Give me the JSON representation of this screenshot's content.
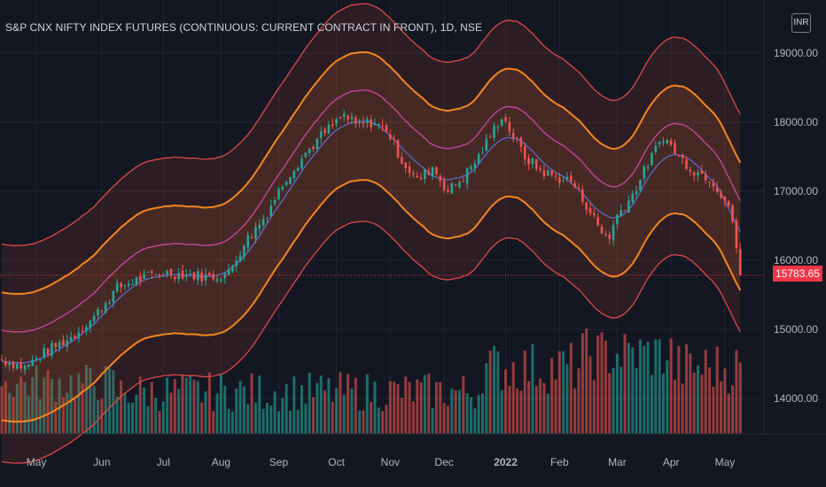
{
  "header": {
    "title": "S&P CNX NIFTY INDEX FUTURES (CONTINUOUS: CURRENT CONTRACT IN FRONT), 1D, NSE",
    "currency": "INR"
  },
  "price_tag": "15783.65",
  "colors": {
    "background": "#131722",
    "grid": "#222631",
    "axis_text": "#b2b5be",
    "up": "#26a69a",
    "down": "#ef5350",
    "outer_band": "#e04848",
    "inner_band": "#f5861f",
    "mid_line": "#c84aa0",
    "basis": "#5b6ad0"
  },
  "chart_data": {
    "type": "candlestick",
    "title": "S&P CNX NIFTY INDEX FUTURES (CONTINUOUS: CURRENT CONTRACT IN FRONT), 1D, NSE",
    "currency": "INR",
    "y_ticks": [
      14000,
      15000,
      16000,
      17000,
      18000,
      19000
    ],
    "y_tick_labels": [
      "14000.00",
      "15000.00",
      "16000.00",
      "17000.00",
      "18000.00",
      "19000.00"
    ],
    "ylim": [
      13600,
      19300
    ],
    "x_ticks": [
      "May",
      "Jun",
      "Jul",
      "Aug",
      "Sep",
      "Oct",
      "Nov",
      "Dec",
      "2022",
      "Feb",
      "Mar",
      "Apr",
      "May"
    ],
    "last_price": 15783.65,
    "grid": true,
    "price_path": [
      [
        0,
        14560
      ],
      [
        6,
        14450
      ],
      [
        12,
        14700
      ],
      [
        18,
        14880
      ],
      [
        24,
        15180
      ],
      [
        30,
        15600
      ],
      [
        36,
        15740
      ],
      [
        42,
        15820
      ],
      [
        48,
        15800
      ],
      [
        54,
        15760
      ],
      [
        59,
        15810
      ],
      [
        63,
        16250
      ],
      [
        68,
        16600
      ],
      [
        74,
        17200
      ],
      [
        79,
        17550
      ],
      [
        83,
        17800
      ],
      [
        89,
        18100
      ],
      [
        92,
        17950
      ],
      [
        96,
        18000
      ],
      [
        100,
        17900
      ],
      [
        104,
        17450
      ],
      [
        108,
        17150
      ],
      [
        112,
        17350
      ],
      [
        116,
        17000
      ],
      [
        120,
        17200
      ],
      [
        124,
        17500
      ],
      [
        130,
        18100
      ],
      [
        132,
        17900
      ],
      [
        136,
        17500
      ],
      [
        140,
        17300
      ],
      [
        144,
        17200
      ],
      [
        148,
        17150
      ],
      [
        152,
        16800
      ],
      [
        156,
        16400
      ],
      [
        158,
        16350
      ],
      [
        160,
        16650
      ],
      [
        164,
        16950
      ],
      [
        168,
        17400
      ],
      [
        172,
        17800
      ],
      [
        176,
        17500
      ],
      [
        180,
        17300
      ],
      [
        184,
        17200
      ],
      [
        186,
        17050
      ],
      [
        189,
        16800
      ],
      [
        191,
        16200
      ],
      [
        192,
        15783.65
      ]
    ],
    "bands": [
      {
        "role": "outer-upper",
        "offset": 1700
      },
      {
        "role": "inner-upper",
        "offset": 1000
      },
      {
        "role": "mid-upper",
        "offset": 450
      },
      {
        "role": "basis",
        "offset": 0
      },
      {
        "role": "inner-lower",
        "offset": -850
      },
      {
        "role": "outer-lower",
        "offset": -1450
      }
    ]
  }
}
